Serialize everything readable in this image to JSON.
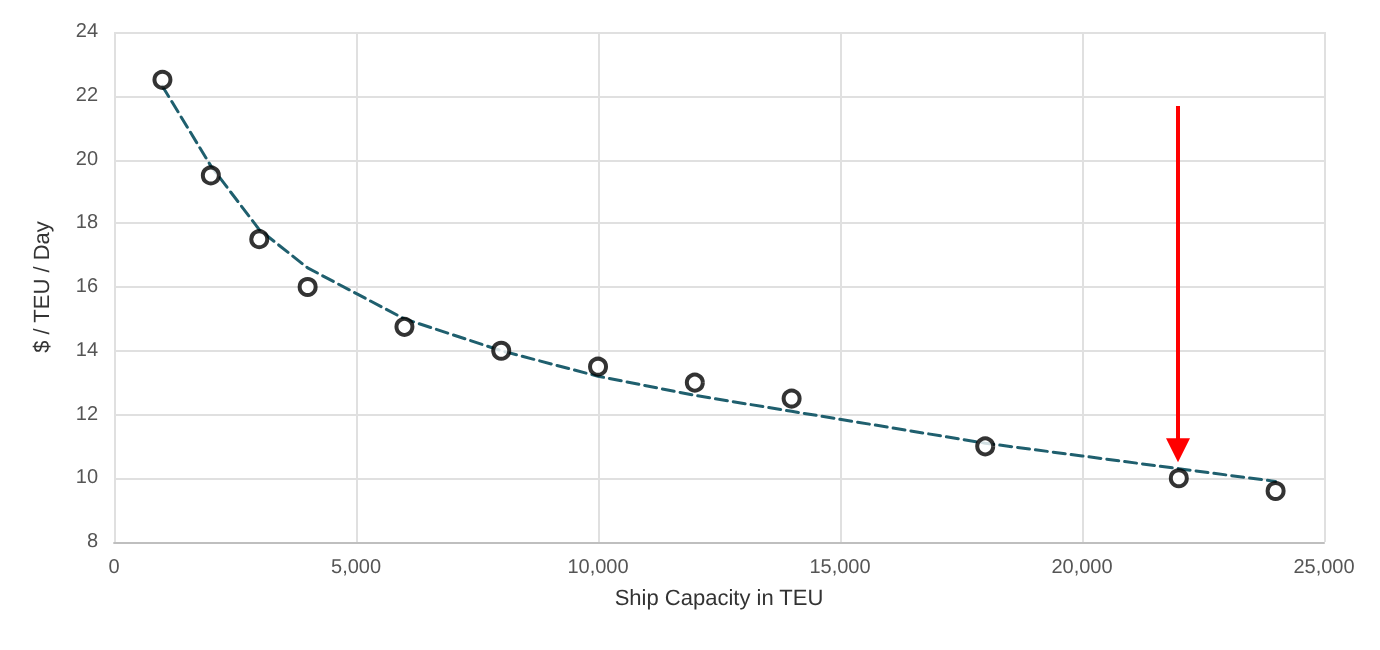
{
  "chart_data": {
    "type": "scatter",
    "xlabel": "Ship Capacity in TEU",
    "ylabel": "$ / TEU / Day",
    "xlim": [
      0,
      25000
    ],
    "xticks": [
      0,
      {
        "value": 5000,
        "label": "5,000"
      },
      {
        "value": 10000,
        "label": "10,000"
      },
      {
        "value": 15000,
        "label": "15,000"
      },
      {
        "value": 20000,
        "label": "20,000"
      },
      {
        "value": 25000,
        "label": "25,000"
      }
    ],
    "ylim": [
      8,
      24
    ],
    "yticks": [
      8,
      10,
      12,
      14,
      16,
      18,
      20,
      22,
      24
    ],
    "grid": true,
    "series": [
      {
        "color": "#000000",
        "marker": "circle",
        "x": [
          1000,
          2000,
          3000,
          4000,
          6000,
          8000,
          10000,
          12000,
          14000,
          18000,
          22000,
          24000
        ],
        "values": [
          22.5,
          19.5,
          17.5,
          16,
          14.75,
          14,
          13.5,
          13,
          12.5,
          11,
          10,
          9.6
        ]
      },
      {
        "type": "line",
        "color": "#1f5f6e",
        "marker": "none",
        "line_style": "dashed",
        "x": [
          1000,
          2000,
          3000,
          4000,
          6000,
          8000,
          10000,
          12000,
          14000,
          16000,
          18000,
          20000,
          22000,
          24000
        ],
        "values": [
          22.3,
          19.8,
          17.8,
          16.6,
          15,
          14,
          13.2,
          12.6,
          12.1,
          11.6,
          11.1,
          10.7,
          10.3,
          9.9
        ]
      }
    ]
  }
}
